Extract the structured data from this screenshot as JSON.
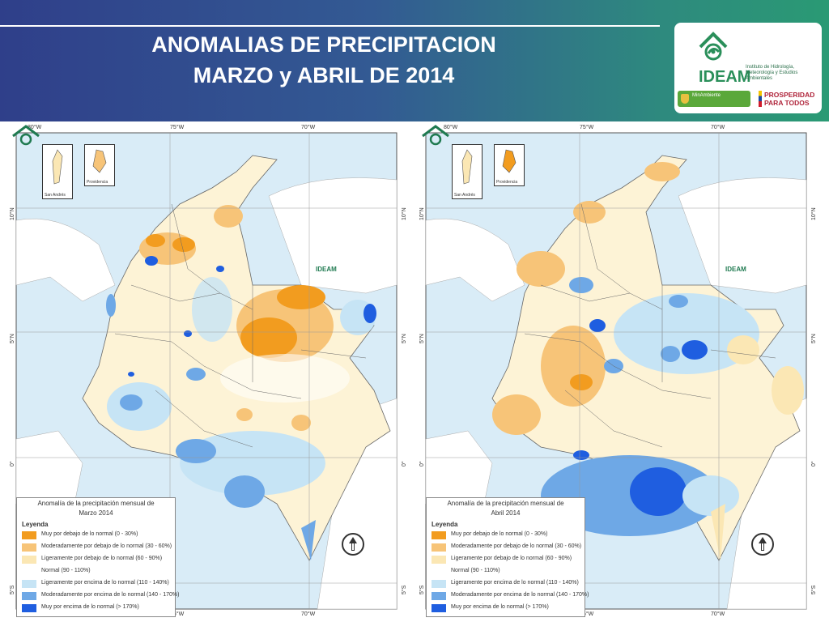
{
  "header": {
    "title_line1": "ANOMALIAS DE PRECIPITACION",
    "title_line2": "MARZO y ABRIL DE 2014"
  },
  "logos": {
    "ideam": "IDEAM",
    "ideam_subtitle": "Instituto de Hidrología, Meteorología y Estudios Ambientales",
    "minambiente": "MinAmbiente",
    "prosperidad_line1": "PROSPERIDAD",
    "prosperidad_line2": "PARA TODOS"
  },
  "map_labels": {
    "lon_80": "80°W",
    "lon_75": "75°W",
    "lon_70": "70°W",
    "lat_10": "10°N",
    "lat_5": "5°N",
    "lat_0": "0°",
    "lat_5s": "5°S",
    "inset_san_andres": "San Andrés",
    "inset_providencia": "Providencia",
    "map_logo": "IDEAM"
  },
  "maps": [
    {
      "legend_title_line1": "Anomalía de la precipitación mensual de",
      "legend_title_line2": "Marzo 2014"
    },
    {
      "legend_title_line1": "Anomalía de la precipitación mensual de",
      "legend_title_line2": "Abril 2014"
    }
  ],
  "legend": {
    "heading": "Leyenda",
    "items": [
      {
        "label": "Muy por debajo de lo normal (0 - 30%)",
        "color": "#f29c1f"
      },
      {
        "label": "Moderadamente por debajo de lo normal (30 - 60%)",
        "color": "#f7c478"
      },
      {
        "label": "Ligeramente por debajo de lo normal (60 - 90%)",
        "color": "#fbe7b4"
      },
      {
        "label": "Normal (90 - 110%)",
        "color": "#ffffff"
      },
      {
        "label": "Ligeramente por encima de lo normal (110 - 140%)",
        "color": "#c6e4f5"
      },
      {
        "label": "Moderadamente por encima de lo normal (140 - 170%)",
        "color": "#6ea8e6"
      },
      {
        "label": "Muy por encima de lo normal (> 170%)",
        "color": "#1f5ee0"
      }
    ]
  },
  "colors": {
    "sea": "#d9ecf7",
    "neighbor_land": "#ffffff",
    "header_left": "#2f3f8a",
    "header_right": "#2a9a74"
  }
}
